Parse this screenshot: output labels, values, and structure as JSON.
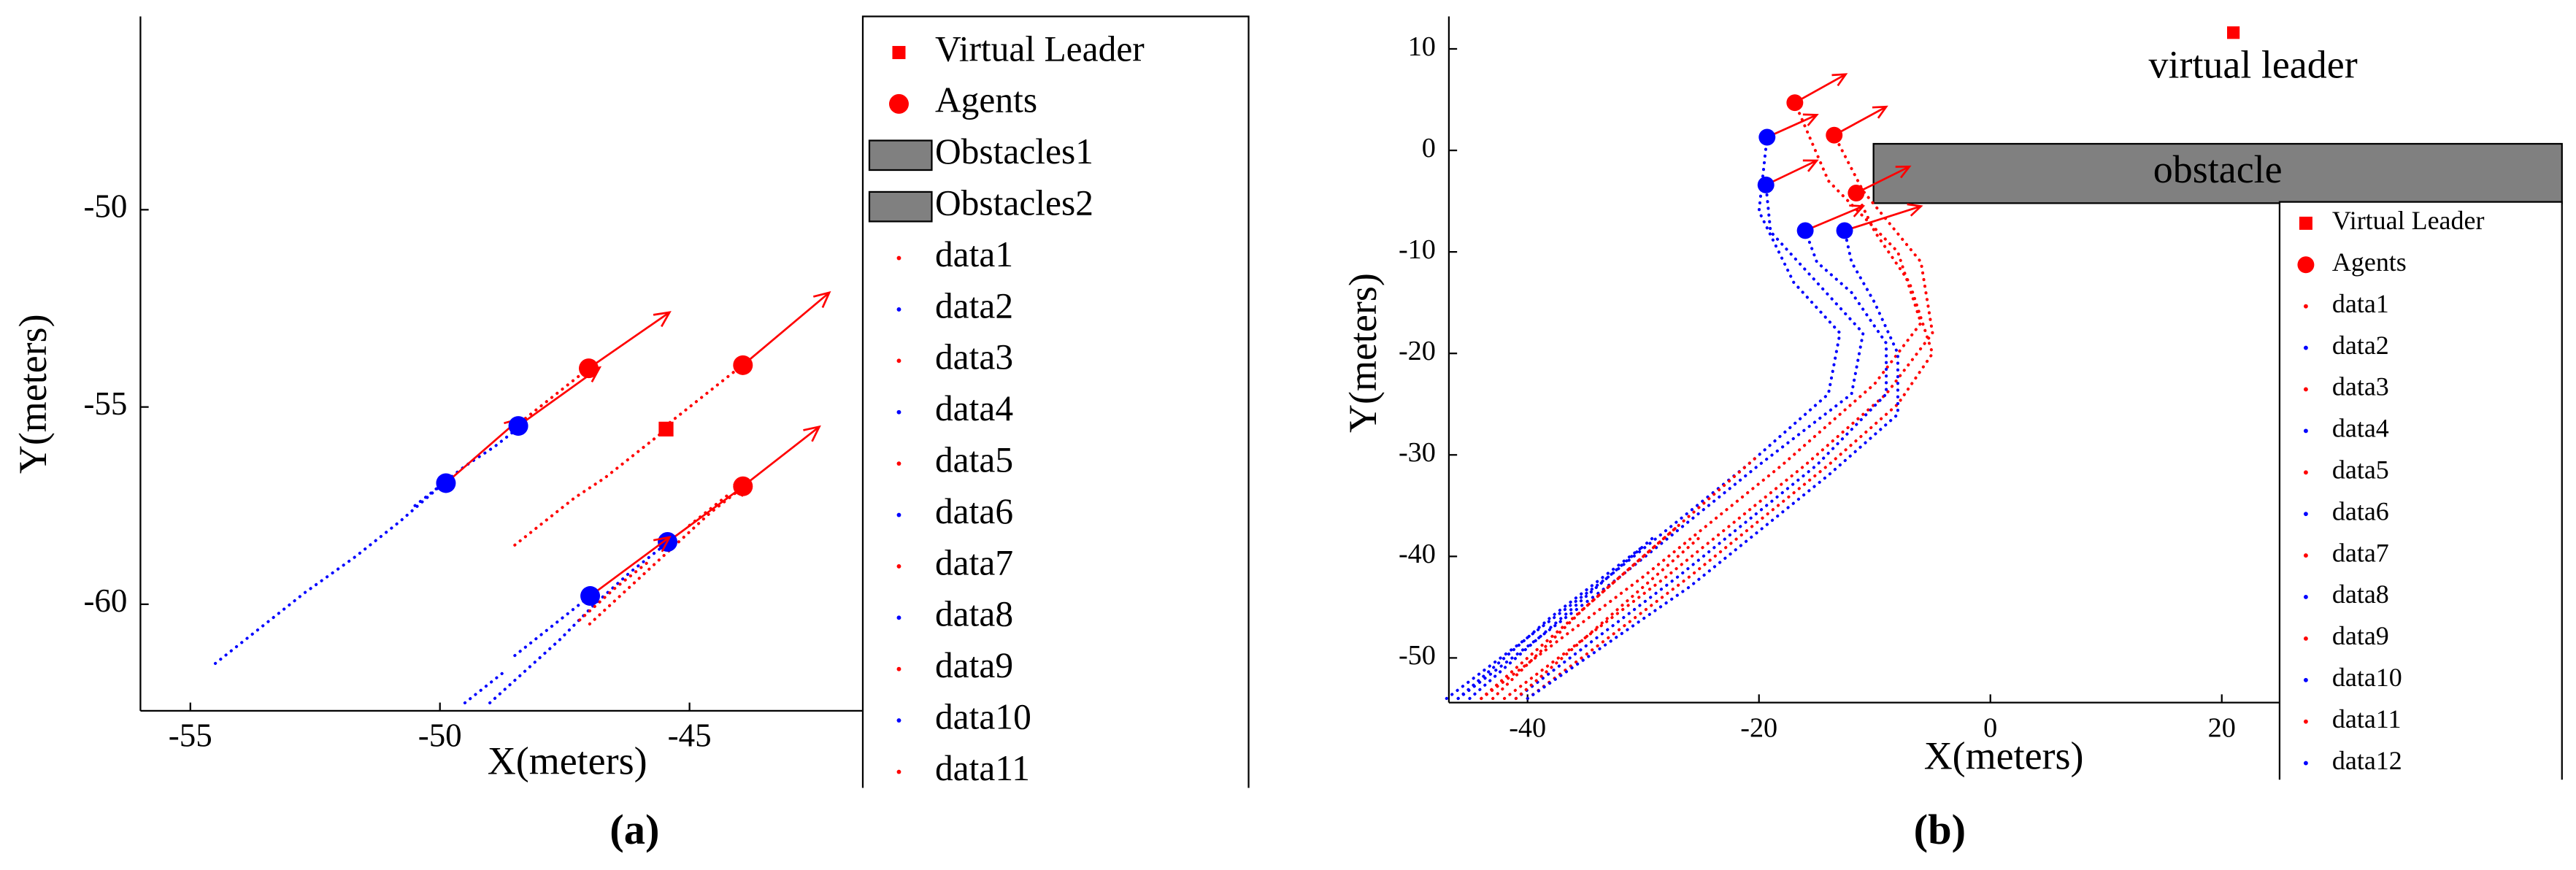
{
  "chart_data": [
    {
      "type": "trajectory",
      "caption": "(a)",
      "xlabel": "X(meters)",
      "ylabel": "Y(meters)",
      "xlim": [
        -56,
        -33.8
      ],
      "ylim": [
        -62.7,
        -45.1
      ],
      "xticks": [
        -55,
        -50,
        -45
      ],
      "yticks": [
        -60,
        -55,
        -50
      ],
      "leader": {
        "name": "Virtual Leader",
        "color": "#ff0000",
        "x": [
          -45.47
        ],
        "y": [
          -55.56
        ]
      },
      "agents": {
        "name": "Agents",
        "color": "#ff0000",
        "colors": [
          "#ff0000",
          "#ff0000",
          "#ff0000",
          "#0000ff",
          "#0000ff",
          "#0000ff",
          "#0000ff"
        ],
        "x": [
          -47.02,
          -43.93,
          -43.93,
          -49.88,
          -48.43,
          -45.44,
          -46.99
        ],
        "y": [
          -54.02,
          -53.94,
          -57.01,
          -56.93,
          -55.48,
          -58.42,
          -59.79
        ],
        "arrow_x": [
          -45.4,
          -42.2,
          -42.4,
          -48.4,
          -46.8,
          -43.8,
          -45.4
        ],
        "arrow_y": [
          -52.6,
          -52.1,
          -55.5,
          -55.3,
          -54.0,
          -56.9,
          -58.3
        ]
      },
      "obstacles": [
        {
          "name": "Obstacles1",
          "color": "#808080"
        },
        {
          "name": "Obstacles2",
          "color": "#808080"
        }
      ],
      "series": [
        {
          "name": "data1",
          "color": "#ff0000",
          "x": [
            -48.5,
            -47.9,
            -47.3,
            -46.7,
            -46.1,
            -45.5
          ],
          "y": [
            -58.5,
            -57.9,
            -57.3,
            -56.8,
            -56.2,
            -55.6
          ]
        },
        {
          "name": "data2",
          "color": "#0000ff",
          "x": [
            -54.5,
            -53.6,
            -52.7,
            -51.7,
            -50.8,
            -49.9
          ],
          "y": [
            -61.5,
            -60.6,
            -59.7,
            -58.8,
            -57.9,
            -56.9
          ]
        },
        {
          "name": "data3",
          "color": "#ff0000",
          "x": [
            -47,
            -46.4,
            -45.8,
            -45.2,
            -44.6,
            -43.9
          ],
          "y": [
            -60.5,
            -59.8,
            -59.1,
            -58.4,
            -57.7,
            -57.0
          ]
        },
        {
          "name": "data4",
          "color": "#0000ff",
          "x": [
            -49,
            -48.3,
            -47.6,
            -46.9,
            -46.2,
            -45.4
          ],
          "y": [
            -62.5,
            -61.7,
            -60.9,
            -60,
            -59.2,
            -58.4
          ]
        },
        {
          "name": "data5",
          "color": "#ff0000",
          "x": [
            -48.5,
            -48,
            -47.5,
            -47.0
          ],
          "y": [
            -55.5,
            -55,
            -54.5,
            -54.0
          ]
        },
        {
          "name": "data6",
          "color": "#0000ff",
          "x": [
            -50.5,
            -50,
            -49.5,
            -48.9,
            -48.4
          ],
          "y": [
            -57.5,
            -57,
            -56.5,
            -56,
            -55.5
          ]
        },
        {
          "name": "data7",
          "color": "#ff0000",
          "x": [
            -45.5,
            -45,
            -44.5,
            -43.9
          ],
          "y": [
            -55.5,
            -55,
            -54.5,
            -53.9
          ]
        },
        {
          "name": "data8",
          "color": "#0000ff",
          "x": [
            -48.5,
            -48,
            -47.5,
            -47
          ],
          "y": [
            -61.3,
            -60.8,
            -60.3,
            -59.8
          ]
        },
        {
          "name": "data9",
          "color": "#ff0000",
          "x": [
            -47.2,
            -46.5,
            -45.8
          ],
          "y": [
            -60.4,
            -59.6,
            -58.9
          ]
        },
        {
          "name": "data10",
          "color": "#0000ff",
          "x": [
            -49.5,
            -49.1,
            -48.7
          ],
          "y": [
            -62.5,
            -62.1,
            -61.7
          ]
        },
        {
          "name": "data11",
          "color": "#ff0000",
          "x": [
            -45,
            -44.6,
            -44.2
          ],
          "y": [
            -58,
            -57.6,
            -57.2
          ]
        }
      ]
    },
    {
      "type": "trajectory",
      "caption": "(b)",
      "xlabel": "X(meters)",
      "ylabel": "Y(meters)",
      "xlim": [
        -46.8,
        49.4
      ],
      "ylim": [
        -54.4,
        13.2
      ],
      "xticks": [
        -40,
        -20,
        0,
        20
      ],
      "yticks": [
        10,
        0,
        -10,
        -20,
        -30,
        -40,
        -50
      ],
      "leader": {
        "name": "Virtual Leader",
        "color": "#ff0000",
        "x": [
          21
        ],
        "y": [
          11.6
        ],
        "label": "virtual leader"
      },
      "agents": {
        "name": "Agents",
        "color": "#ff0000",
        "colors": [
          "#ff0000",
          "#ff0000",
          "#ff0000",
          "#0000ff",
          "#0000ff",
          "#0000ff",
          "#0000ff"
        ],
        "x": [
          -16.9,
          -13.5,
          -11.6,
          -19.3,
          -19.4,
          -16.0,
          -12.6
        ],
        "y": [
          4.7,
          1.5,
          -4.2,
          1.3,
          -3.4,
          -7.9,
          -7.9
        ],
        "arrow_x": [
          -12.5,
          -9,
          -7,
          -15,
          -15,
          -11,
          -6
        ],
        "arrow_y": [
          7.5,
          4.3,
          -1.6,
          3.5,
          -1,
          -5.5,
          -5.5
        ]
      },
      "obstacle": {
        "label": "obstacle",
        "color": "#808080",
        "x": [
          -10.1,
          49.4
        ],
        "y": [
          -5.2,
          0.65
        ]
      },
      "series": [
        {
          "name": "data1",
          "color": "#ff0000",
          "x": [
            -44,
            -30,
            -18,
            -10,
            -6,
            -8,
            -14,
            -16.9
          ],
          "y": [
            -54,
            -42,
            -31,
            -23,
            -17,
            -10,
            -3,
            4.7
          ]
        },
        {
          "name": "data2",
          "color": "#0000ff",
          "x": [
            -47,
            -33,
            -21,
            -14,
            -13,
            -17,
            -20,
            -19.3
          ],
          "y": [
            -54,
            -42,
            -31,
            -24,
            -18,
            -13,
            -6,
            1.3
          ]
        },
        {
          "name": "data3",
          "color": "#ff0000",
          "x": [
            -42,
            -28,
            -16,
            -9,
            -5,
            -6,
            -11,
            -13.5
          ],
          "y": [
            -54,
            -42,
            -31,
            -24,
            -18,
            -11,
            -4,
            1.5
          ]
        },
        {
          "name": "data4",
          "color": "#0000ff",
          "x": [
            -46,
            -32,
            -20,
            -12,
            -11,
            -15,
            -19,
            -19.4
          ],
          "y": [
            -54,
            -42,
            -31,
            -24,
            -18,
            -13,
            -8,
            -3.4
          ]
        },
        {
          "name": "data5",
          "color": "#ff0000",
          "x": [
            -40,
            -26,
            -14,
            -8,
            -5,
            -7,
            -10,
            -11.6
          ],
          "y": [
            -54,
            -42,
            -31,
            -25,
            -20,
            -13,
            -8,
            -4.2
          ]
        },
        {
          "name": "data6",
          "color": "#0000ff",
          "x": [
            -41,
            -27,
            -15,
            -9,
            -9,
            -12,
            -15,
            -16
          ],
          "y": [
            -54,
            -42,
            -31,
            -24,
            -19,
            -14,
            -11,
            -7.9
          ]
        },
        {
          "name": "data7",
          "color": "#ff0000",
          "x": [
            -44,
            -36,
            -28,
            -20
          ],
          "y": [
            -54,
            -46,
            -38,
            -30
          ]
        },
        {
          "name": "data8",
          "color": "#0000ff",
          "x": [
            -40,
            -26,
            -14,
            -8,
            -8,
            -10,
            -12,
            -12.6
          ],
          "y": [
            -54,
            -43,
            -32,
            -26,
            -20,
            -15,
            -11,
            -7.9
          ]
        },
        {
          "name": "data9",
          "color": "#ff0000",
          "x": [
            -43,
            -35,
            -27
          ],
          "y": [
            -54,
            -45,
            -37
          ]
        },
        {
          "name": "data10",
          "color": "#0000ff",
          "x": [
            -46,
            -38,
            -30
          ],
          "y": [
            -54,
            -46,
            -39
          ]
        },
        {
          "name": "data11",
          "color": "#ff0000",
          "x": [
            -41,
            -33,
            -25
          ],
          "y": [
            -54,
            -46,
            -38
          ]
        },
        {
          "name": "data12",
          "color": "#0000ff",
          "x": [
            -45,
            -37,
            -29
          ],
          "y": [
            -54,
            -46,
            -38
          ]
        }
      ]
    }
  ]
}
